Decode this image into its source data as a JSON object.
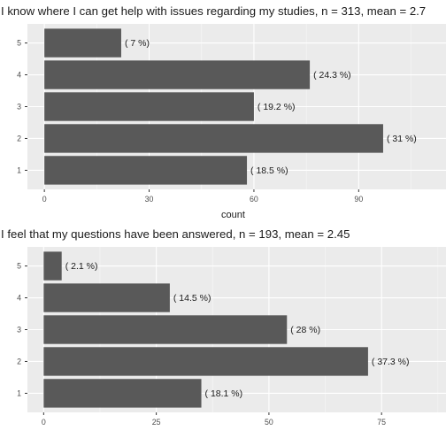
{
  "chart_data": [
    {
      "type": "bar",
      "orientation": "horizontal",
      "title": "I know where I can get help with issues regarding my studies, n = 313, mean = 2.7",
      "xlabel": "count",
      "ylabel": "",
      "categories": [
        "1",
        "2",
        "3",
        "4",
        "5"
      ],
      "values": [
        58,
        97,
        60,
        76,
        22
      ],
      "labels": [
        "( 18.5 %)",
        "( 31 %)",
        "( 19.2 %)",
        "( 24.3 %)",
        "( 7 %)"
      ],
      "xticks": [
        "0",
        "30",
        "60",
        "90"
      ],
      "xtick_values": [
        0,
        30,
        60,
        90
      ],
      "xlim": [
        -4.85,
        115
      ],
      "grid": true,
      "bar_color": "#595959",
      "panel_color": "#ebebeb"
    },
    {
      "type": "bar",
      "orientation": "horizontal",
      "title": "I feel that my questions have been answered, n = 193, mean =  2.45",
      "xlabel": "",
      "ylabel": "",
      "categories": [
        "1",
        "2",
        "3",
        "4",
        "5"
      ],
      "values": [
        35,
        72,
        54,
        28,
        4
      ],
      "labels": [
        "( 18.1 %)",
        "( 37.3 %)",
        "( 28 %)",
        "( 14.5 %)",
        "( 2.1 %)"
      ],
      "xticks": [
        "0",
        "25",
        "50",
        "75"
      ],
      "xtick_values": [
        0,
        25,
        50,
        75
      ],
      "xlim": [
        -3.6,
        89.3
      ],
      "grid": true,
      "bar_color": "#595959",
      "panel_color": "#ebebeb"
    }
  ]
}
